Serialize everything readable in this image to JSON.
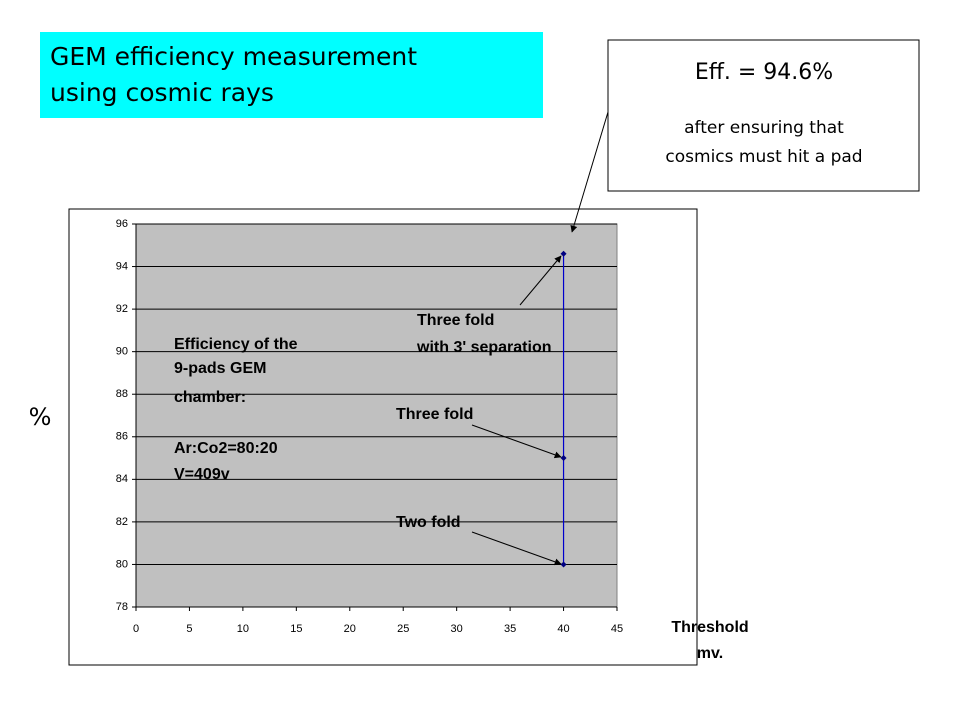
{
  "title": {
    "lines": [
      "GEM efficiency measurement",
      "using cosmic rays"
    ]
  },
  "callout": {
    "lines": [
      "Eff. = 94.6%",
      "after ensuring that",
      "cosmics must hit a pad"
    ]
  },
  "chart_data": {
    "type": "line",
    "ylabel": "%",
    "xlabel": [
      "Threshold",
      "mv."
    ],
    "series": [
      {
        "x": [
          40,
          40,
          40
        ],
        "values": [
          80,
          85,
          94.6
        ],
        "color": "#0000cc"
      }
    ],
    "xlim": [
      0,
      45
    ],
    "xticks": [
      0,
      5,
      10,
      15,
      20,
      25,
      30,
      35,
      40,
      45
    ],
    "ylim": [
      78,
      96
    ],
    "yticks": [
      78,
      80,
      82,
      84,
      86,
      88,
      90,
      92,
      94,
      96
    ],
    "grid": true,
    "plot_background": "#c0c0c0",
    "annotations": [
      {
        "lines": [
          "Efficiency of the",
          "9-pads GEM",
          "chamber:",
          "Ar:Co2=80:20",
          "V=409v"
        ]
      },
      {
        "lines": [
          "Three fold",
          "with 3' separation"
        ]
      },
      {
        "lines": [
          "Three fold"
        ]
      },
      {
        "lines": [
          "Two fold"
        ]
      }
    ]
  }
}
